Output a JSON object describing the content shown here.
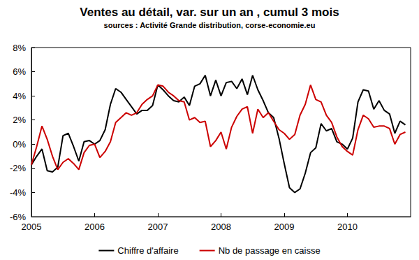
{
  "chart_data": {
    "type": "line",
    "title": "Ventes au détail, var. sur un an , cumul 3 mois",
    "subtitle": "sources : Activité Grande distribution, corse-economie.eu",
    "x": [
      2005,
      2005.083,
      2005.167,
      2005.25,
      2005.333,
      2005.417,
      2005.5,
      2005.583,
      2005.667,
      2005.75,
      2005.833,
      2005.917,
      2006,
      2006.083,
      2006.167,
      2006.25,
      2006.333,
      2006.417,
      2006.5,
      2006.583,
      2006.667,
      2006.75,
      2006.833,
      2006.917,
      2007,
      2007.083,
      2007.167,
      2007.25,
      2007.333,
      2007.417,
      2007.5,
      2007.583,
      2007.667,
      2007.75,
      2007.833,
      2007.917,
      2008,
      2008.083,
      2008.167,
      2008.25,
      2008.333,
      2008.417,
      2008.5,
      2008.583,
      2008.667,
      2008.75,
      2008.833,
      2008.917,
      2009,
      2009.083,
      2009.167,
      2009.25,
      2009.333,
      2009.417,
      2009.5,
      2009.583,
      2009.667,
      2009.75,
      2009.833,
      2009.917,
      2010,
      2010.083,
      2010.167,
      2010.25,
      2010.333,
      2010.417,
      2010.5,
      2010.583,
      2010.667,
      2010.75,
      2010.833,
      2010.917
    ],
    "series": [
      {
        "name": "Chiffre d'affaire",
        "color": "#000000",
        "values": [
          -1.7,
          -1.0,
          -0.4,
          -2.2,
          -2.3,
          -1.9,
          0.7,
          0.9,
          -0.2,
          -1.4,
          0.2,
          0.3,
          0.0,
          0.3,
          1.2,
          3.3,
          4.6,
          4.3,
          3.7,
          3.1,
          2.5,
          2.8,
          2.8,
          3.2,
          4.9,
          4.5,
          4.0,
          3.6,
          3.5,
          3.9,
          3.2,
          4.8,
          5.0,
          5.7,
          4.0,
          5.3,
          4.0,
          5.1,
          5.2,
          4.6,
          5.4,
          4.1,
          5.7,
          4.5,
          3.6,
          2.6,
          2.2,
          0.5,
          -1.6,
          -3.6,
          -4.0,
          -3.7,
          -2.4,
          -0.7,
          -0.3,
          1.7,
          1.1,
          1.3,
          0.2,
          0.0,
          -0.4,
          0.5,
          3.5,
          4.5,
          4.4,
          2.9,
          3.6,
          2.8,
          2.5,
          0.9,
          1.9,
          1.6
        ]
      },
      {
        "name": "Nb de passage en caisse",
        "color": "#cc0000",
        "values": [
          -1.7,
          -0.2,
          1.5,
          0.4,
          -1.0,
          -2.1,
          -1.5,
          -1.2,
          -1.6,
          -2.1,
          -0.7,
          -0.1,
          0.0,
          -1.1,
          -0.6,
          0.2,
          1.8,
          2.2,
          2.6,
          2.4,
          2.6,
          3.3,
          3.7,
          4.0,
          4.9,
          4.8,
          4.3,
          4.0,
          3.6,
          3.5,
          2.0,
          2.2,
          1.8,
          1.9,
          -0.2,
          0.3,
          1.0,
          -0.4,
          1.4,
          2.3,
          2.9,
          3.1,
          0.9,
          2.9,
          2.2,
          2.6,
          1.9,
          1.2,
          0.9,
          0.4,
          0.8,
          2.4,
          3.3,
          4.9,
          3.7,
          3.5,
          2.4,
          1.8,
          0.6,
          -0.2,
          -0.6,
          -0.9,
          1.2,
          2.4,
          2.1,
          1.4,
          1.5,
          1.5,
          1.3,
          0.0,
          0.8,
          1.0
        ]
      }
    ],
    "xlim": [
      2005,
      2011
    ],
    "xticks": [
      2005,
      2006,
      2007,
      2008,
      2009,
      2010
    ],
    "ylim": [
      -6,
      8
    ],
    "yticks": [
      {
        "value": -6,
        "label": "-6%"
      },
      {
        "value": -4,
        "label": "-4%"
      },
      {
        "value": -2,
        "label": "-2%"
      },
      {
        "value": 0,
        "label": "0%"
      },
      {
        "value": 2,
        "label": "2%"
      },
      {
        "value": 4,
        "label": "4%"
      },
      {
        "value": 6,
        "label": "6%"
      },
      {
        "value": 8,
        "label": "8%"
      }
    ],
    "grid": false,
    "legend": "bottom"
  }
}
